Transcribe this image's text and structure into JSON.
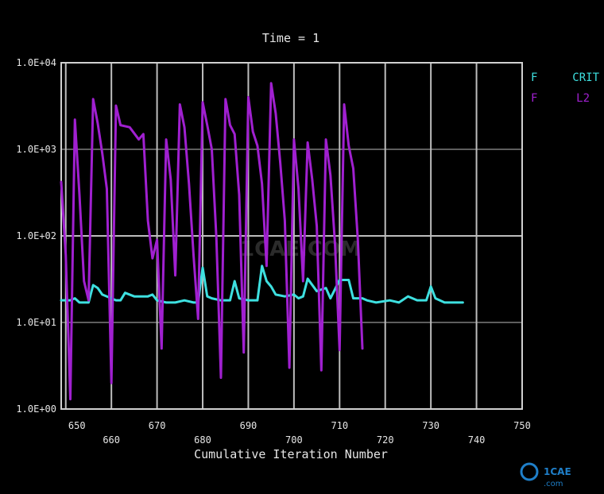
{
  "chart_data": {
    "type": "line",
    "title": "Time = 1",
    "xlabel": "Cumulative Iteration Number",
    "ylabel": "",
    "xlim": [
      649,
      750
    ],
    "ylim": [
      1,
      10000
    ],
    "yscale": "log",
    "grid": true,
    "legend_position": "top-right",
    "x_ticks": [
      650,
      660,
      670,
      680,
      690,
      700,
      710,
      720,
      730,
      740,
      750
    ],
    "x_tick_labels": [
      "650",
      "660",
      "670",
      "680",
      "690",
      "700",
      "710",
      "720",
      "730",
      "740",
      "750"
    ],
    "y_ticks": [
      1,
      10,
      100,
      1000,
      10000
    ],
    "y_tick_labels": [
      "1.0E+00",
      "1.0E+01",
      "1.0E+02",
      "1.0E+03",
      "1.0E+04"
    ],
    "series": [
      {
        "name": "F    CRIT",
        "legend_left": "F",
        "legend_right": "CRIT",
        "color": "#3ee0e0",
        "points": [
          [
            649,
            18
          ],
          [
            651,
            18
          ],
          [
            652,
            19
          ],
          [
            653,
            17
          ],
          [
            655,
            17
          ],
          [
            656,
            27
          ],
          [
            657,
            25
          ],
          [
            658,
            21
          ],
          [
            660,
            19
          ],
          [
            661,
            18
          ],
          [
            662,
            18
          ],
          [
            663,
            22
          ],
          [
            665,
            20
          ],
          [
            668,
            20
          ],
          [
            669,
            21
          ],
          [
            670,
            18
          ],
          [
            672,
            17
          ],
          [
            674,
            17
          ],
          [
            676,
            18
          ],
          [
            678,
            17
          ],
          [
            679,
            17
          ],
          [
            680,
            43
          ],
          [
            681,
            20
          ],
          [
            682,
            19
          ],
          [
            684,
            18
          ],
          [
            686,
            18
          ],
          [
            687,
            30
          ],
          [
            688,
            19
          ],
          [
            690,
            18
          ],
          [
            692,
            18
          ],
          [
            693,
            45
          ],
          [
            694,
            30
          ],
          [
            695,
            26
          ],
          [
            696,
            21
          ],
          [
            698,
            20
          ],
          [
            700,
            21
          ],
          [
            701,
            19
          ],
          [
            702,
            20
          ],
          [
            703,
            32
          ],
          [
            705,
            23
          ],
          [
            707,
            25
          ],
          [
            708,
            19
          ],
          [
            710,
            31
          ],
          [
            712,
            31
          ],
          [
            713,
            19
          ],
          [
            715,
            19
          ],
          [
            716,
            18
          ],
          [
            718,
            17
          ],
          [
            721,
            18
          ],
          [
            723,
            17
          ],
          [
            725,
            20
          ],
          [
            727,
            18
          ],
          [
            729,
            18
          ],
          [
            730,
            26
          ],
          [
            731,
            19
          ],
          [
            733,
            17
          ],
          [
            735,
            17
          ],
          [
            737,
            17
          ]
        ]
      },
      {
        "name": "F     L2",
        "legend_left": "F",
        "legend_right": "L2",
        "color": "#a020d0",
        "points": [
          [
            649,
            420
          ],
          [
            650,
            60
          ],
          [
            651,
            1.3
          ],
          [
            652,
            2200
          ],
          [
            653,
            300
          ],
          [
            654,
            30
          ],
          [
            655,
            18
          ],
          [
            656,
            3800
          ],
          [
            657,
            2000
          ],
          [
            658,
            900
          ],
          [
            659,
            350
          ],
          [
            660,
            2
          ],
          [
            661,
            3200
          ],
          [
            662,
            1900
          ],
          [
            664,
            1800
          ],
          [
            666,
            1300
          ],
          [
            667,
            1500
          ],
          [
            668,
            150
          ],
          [
            669,
            55
          ],
          [
            670,
            90
          ],
          [
            671,
            5
          ],
          [
            672,
            1300
          ],
          [
            673,
            450
          ],
          [
            674,
            35
          ],
          [
            675,
            3300
          ],
          [
            676,
            1800
          ],
          [
            677,
            400
          ],
          [
            678,
            60
          ],
          [
            679,
            11
          ],
          [
            680,
            3500
          ],
          [
            681,
            1900
          ],
          [
            682,
            1000
          ],
          [
            683,
            95
          ],
          [
            684,
            2.3
          ],
          [
            685,
            3800
          ],
          [
            686,
            1900
          ],
          [
            687,
            1500
          ],
          [
            688,
            300
          ],
          [
            689,
            4.5
          ],
          [
            690,
            4000
          ],
          [
            691,
            1600
          ],
          [
            692,
            1100
          ],
          [
            693,
            400
          ],
          [
            694,
            45
          ],
          [
            695,
            5800
          ],
          [
            696,
            2600
          ],
          [
            697,
            700
          ],
          [
            698,
            150
          ],
          [
            699,
            3
          ],
          [
            700,
            1300
          ],
          [
            701,
            350
          ],
          [
            702,
            30
          ],
          [
            703,
            1200
          ],
          [
            704,
            450
          ],
          [
            705,
            130
          ],
          [
            706,
            2.8
          ],
          [
            707,
            1300
          ],
          [
            708,
            500
          ],
          [
            709,
            80
          ],
          [
            710,
            4.8
          ],
          [
            711,
            3300
          ],
          [
            712,
            1100
          ],
          [
            713,
            600
          ],
          [
            714,
            90
          ],
          [
            715,
            5
          ]
        ]
      }
    ]
  },
  "watermark": {
    "text": "1CAE.COM"
  }
}
